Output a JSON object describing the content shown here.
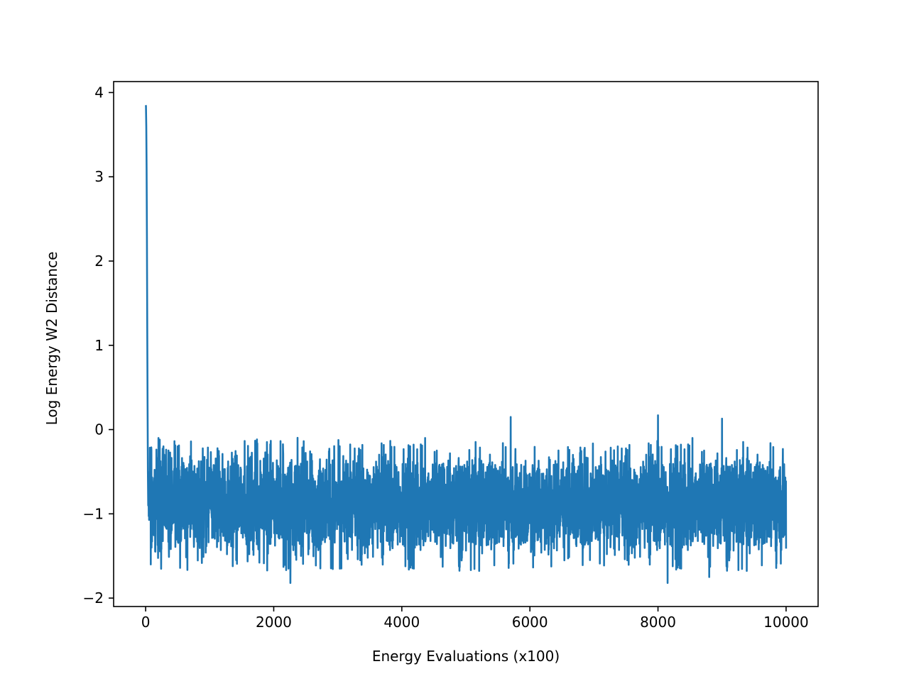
{
  "chart_data": {
    "type": "line",
    "title": "",
    "xlabel": "Energy Evaluations (x100)",
    "ylabel": "Log Energy W2 Distance",
    "xlim": [
      -500,
      10500
    ],
    "ylim": [
      -2.1,
      4.13
    ],
    "xticks": [
      0,
      2000,
      4000,
      6000,
      8000,
      10000
    ],
    "xtick_labels": [
      "0",
      "2000",
      "4000",
      "6000",
      "8000",
      "10000"
    ],
    "yticks": [
      -2,
      -1,
      0,
      1,
      2,
      3,
      4
    ],
    "ytick_labels": [
      "−2",
      "−1",
      "0",
      "1",
      "2",
      "3",
      "4"
    ],
    "grid": false,
    "legend": "none",
    "line_color": "#1f77b4",
    "series": [
      {
        "x": [
          0,
          5,
          10,
          15,
          20,
          25,
          30,
          35,
          40,
          50,
          60,
          80,
          100,
          150,
          200,
          300,
          400,
          500,
          700,
          1000,
          1500,
          2000,
          2260,
          3000,
          4000,
          5000,
          5700,
          6000,
          7000,
          8000,
          8150,
          8800,
          9000,
          9500,
          10000
        ],
        "y": [
          3.85,
          3.84,
          3.6,
          3.1,
          2.3,
          1.2,
          0.3,
          -0.5,
          -0.9,
          -1.3,
          -0.3,
          -1.6,
          -0.7,
          -1.5,
          -0.1,
          -0.9,
          -1.4,
          -0.2,
          -0.8,
          -1.2,
          -0.5,
          -0.9,
          -1.82,
          -0.6,
          -1.1,
          -0.4,
          0.15,
          -0.8,
          -1.3,
          0.17,
          -1.82,
          -1.75,
          0.13,
          -0.9,
          -1.0
        ]
      }
    ],
    "noise_band": {
      "x_start": 40,
      "x_end": 10000,
      "typical_min": -1.5,
      "typical_max": -0.25,
      "extreme_min": -1.82,
      "extreme_max": 0.17
    }
  }
}
